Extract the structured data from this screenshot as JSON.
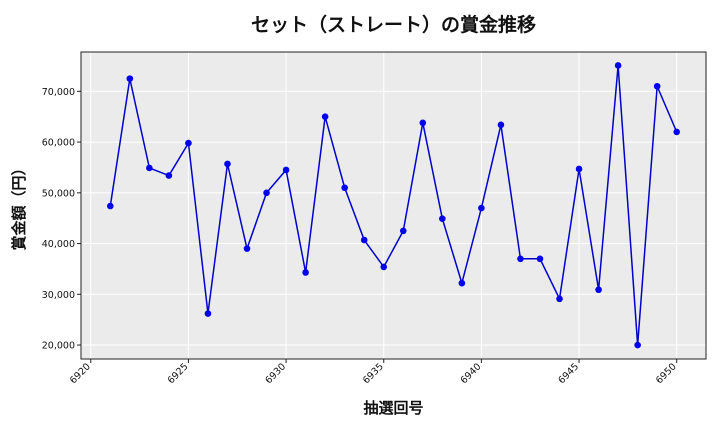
{
  "chart_data": {
    "type": "line",
    "title": "セット（ストレート）の賞金推移",
    "xlabel": "抽選回号",
    "ylabel": "賞金額（円）",
    "xlim": [
      6919.5,
      6951.5
    ],
    "ylim": [
      17250,
      77750
    ],
    "x_ticks": [
      6920,
      6925,
      6930,
      6935,
      6940,
      6945,
      6950
    ],
    "y_ticks": [
      20000,
      30000,
      40000,
      50000,
      60000,
      70000
    ],
    "y_tick_labels": [
      "20,000",
      "30,000",
      "40,000",
      "50,000",
      "60,000",
      "70,000"
    ],
    "grid": true,
    "line_color": "#0000cc",
    "marker_color": "#0000ee",
    "plot_background": "#ebebeb",
    "series": [
      {
        "x": [
          6921,
          6922,
          6923,
          6924,
          6925,
          6926,
          6927,
          6928,
          6929,
          6930,
          6931,
          6932,
          6933,
          6934,
          6935,
          6936,
          6937,
          6938,
          6939,
          6940,
          6941,
          6942,
          6943,
          6944,
          6945,
          6946,
          6947,
          6948,
          6949,
          6950
        ],
        "values": [
          47400,
          72500,
          54900,
          53400,
          59800,
          26200,
          55700,
          39000,
          50000,
          54500,
          34300,
          65000,
          51000,
          40700,
          35400,
          42500,
          63800,
          44900,
          32200,
          47000,
          63400,
          37000,
          37000,
          29100,
          54700,
          30900,
          75100,
          20000,
          71000,
          62000
        ]
      }
    ]
  }
}
